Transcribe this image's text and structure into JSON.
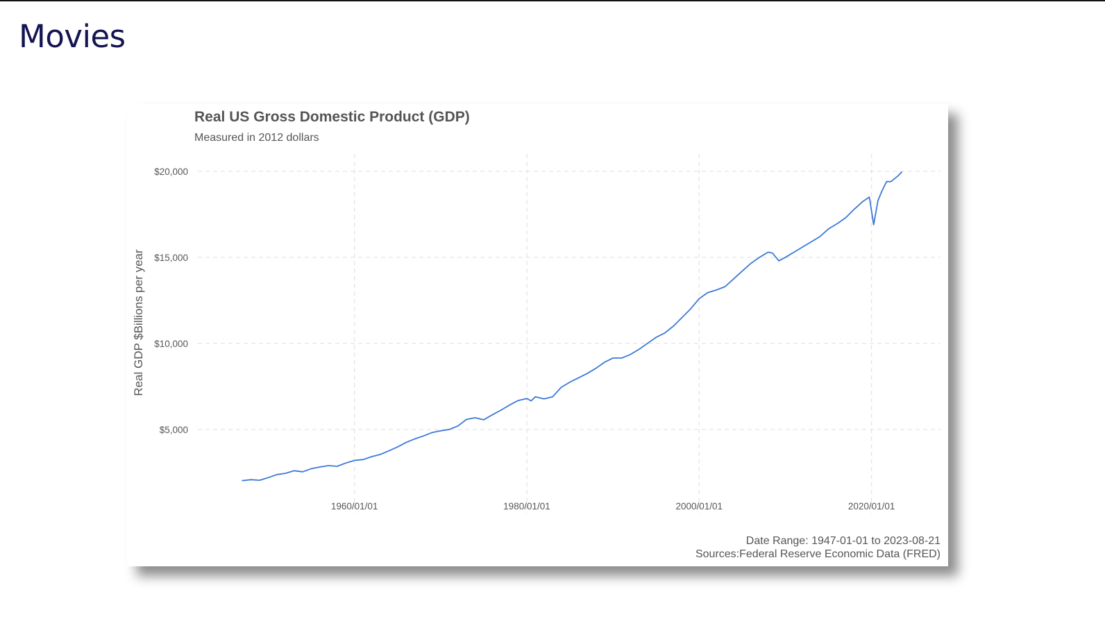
{
  "slide": {
    "title": "Movies"
  },
  "chart_data": {
    "type": "line",
    "title": "Real US Gross Domestic Product (GDP)",
    "subtitle": "Measured in 2012 dollars",
    "xlabel": "",
    "ylabel": "Real GDP $Billions per year",
    "xlim": [
      "1947-01-01",
      "2023-08-21"
    ],
    "ylim": [
      1000,
      21000
    ],
    "x_ticks": [
      "1960/01/01",
      "1980/01/01",
      "2000/01/01",
      "2020/01/01"
    ],
    "y_ticks": [
      {
        "value": 5000,
        "label": "$5,000"
      },
      {
        "value": 10000,
        "label": "$10,000"
      },
      {
        "value": 15000,
        "label": "$15,000"
      },
      {
        "value": 20000,
        "label": "$20,000"
      }
    ],
    "grid": true,
    "line_color": "#3b78d8",
    "series": [
      {
        "points": [
          [
            "1947-01-01",
            2030
          ],
          [
            "1948-01-01",
            2080
          ],
          [
            "1949-01-01",
            2050
          ],
          [
            "1950-01-01",
            2200
          ],
          [
            "1951-01-01",
            2380
          ],
          [
            "1952-01-01",
            2450
          ],
          [
            "1953-01-01",
            2600
          ],
          [
            "1954-01-01",
            2540
          ],
          [
            "1955-01-01",
            2720
          ],
          [
            "1956-01-01",
            2820
          ],
          [
            "1957-01-01",
            2900
          ],
          [
            "1958-01-01",
            2860
          ],
          [
            "1959-01-01",
            3050
          ],
          [
            "1960-01-01",
            3200
          ],
          [
            "1961-01-01",
            3250
          ],
          [
            "1962-01-01",
            3420
          ],
          [
            "1963-01-01",
            3550
          ],
          [
            "1964-01-01",
            3760
          ],
          [
            "1965-01-01",
            3980
          ],
          [
            "1966-01-01",
            4250
          ],
          [
            "1967-01-01",
            4450
          ],
          [
            "1968-01-01",
            4620
          ],
          [
            "1969-01-01",
            4820
          ],
          [
            "1970-01-01",
            4920
          ],
          [
            "1971-01-01",
            5000
          ],
          [
            "1972-01-01",
            5200
          ],
          [
            "1973-01-01",
            5580
          ],
          [
            "1974-01-01",
            5680
          ],
          [
            "1975-01-01",
            5560
          ],
          [
            "1976-01-01",
            5850
          ],
          [
            "1977-01-01",
            6120
          ],
          [
            "1978-01-01",
            6420
          ],
          [
            "1979-01-01",
            6680
          ],
          [
            "1980-01-01",
            6800
          ],
          [
            "1980-07-01",
            6660
          ],
          [
            "1981-01-01",
            6900
          ],
          [
            "1982-01-01",
            6780
          ],
          [
            "1983-01-01",
            6900
          ],
          [
            "1984-01-01",
            7450
          ],
          [
            "1985-01-01",
            7750
          ],
          [
            "1986-01-01",
            8000
          ],
          [
            "1987-01-01",
            8250
          ],
          [
            "1988-01-01",
            8550
          ],
          [
            "1989-01-01",
            8900
          ],
          [
            "1990-01-01",
            9150
          ],
          [
            "1991-01-01",
            9150
          ],
          [
            "1992-01-01",
            9350
          ],
          [
            "1993-01-01",
            9650
          ],
          [
            "1994-01-01",
            10000
          ],
          [
            "1995-01-01",
            10350
          ],
          [
            "1996-01-01",
            10600
          ],
          [
            "1997-01-01",
            11000
          ],
          [
            "1998-01-01",
            11500
          ],
          [
            "1999-01-01",
            12000
          ],
          [
            "2000-01-01",
            12600
          ],
          [
            "2001-01-01",
            12950
          ],
          [
            "2002-01-01",
            13100
          ],
          [
            "2003-01-01",
            13300
          ],
          [
            "2004-01-01",
            13750
          ],
          [
            "2005-01-01",
            14200
          ],
          [
            "2006-01-01",
            14650
          ],
          [
            "2007-01-01",
            15000
          ],
          [
            "2008-01-01",
            15300
          ],
          [
            "2008-07-01",
            15250
          ],
          [
            "2009-04-01",
            14800
          ],
          [
            "2010-01-01",
            15000
          ],
          [
            "2011-01-01",
            15300
          ],
          [
            "2012-01-01",
            15600
          ],
          [
            "2013-01-01",
            15900
          ],
          [
            "2014-01-01",
            16200
          ],
          [
            "2015-01-01",
            16650
          ],
          [
            "2016-01-01",
            16950
          ],
          [
            "2017-01-01",
            17300
          ],
          [
            "2018-01-01",
            17800
          ],
          [
            "2019-01-01",
            18250
          ],
          [
            "2019-10-01",
            18500
          ],
          [
            "2020-04-01",
            16900
          ],
          [
            "2020-10-01",
            18300
          ],
          [
            "2021-04-01",
            18900
          ],
          [
            "2021-10-01",
            19400
          ],
          [
            "2022-04-01",
            19400
          ],
          [
            "2023-01-01",
            19700
          ],
          [
            "2023-07-01",
            19950
          ]
        ]
      }
    ],
    "caption": [
      "Date Range: 1947-01-01 to 2023-08-21",
      "Sources:Federal Reserve Economic Data (FRED)"
    ]
  }
}
